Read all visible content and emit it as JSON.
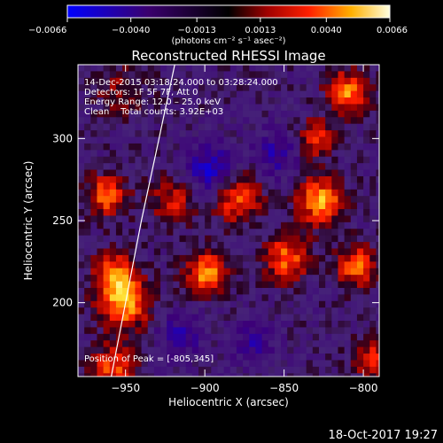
{
  "colorbar": {
    "ticks": [
      "-0.0066",
      "-0.0040",
      "-0.0013",
      "0.0013",
      "0.0040",
      "0.0066"
    ],
    "min": -0.0066,
    "max": 0.0066,
    "units": "(photons cm⁻² s⁻¹ asec⁻²)"
  },
  "chart_data": {
    "type": "heatmap",
    "title": "Reconstructed RHESSI Image",
    "xlabel": "Heliocentric X (arcsec)",
    "ylabel": "Heliocentric Y (arcsec)",
    "xlim": [
      -980,
      -790
    ],
    "ylim": [
      155,
      345
    ],
    "xticks": [
      -950,
      -900,
      -850,
      -800
    ],
    "yticks": [
      200,
      250,
      300
    ],
    "info_lines": [
      "14-Dec-2015 03:18:24.000 to 03:28:24.000",
      "Detectors: 1F 5F 7F, Att 0",
      "Energy Range: 12.0 – 25.0 keV",
      "Clean    Total counts: 3.92E+03"
    ],
    "peak_text": "Position of Peak = [-805,345]",
    "peak": [
      -805,
      345
    ],
    "sources": [
      {
        "x": -951,
        "y": 200,
        "amp": 0.0064,
        "sigma": 11
      },
      {
        "x": -958,
        "y": 218,
        "amp": 0.0046,
        "sigma": 9
      },
      {
        "x": -962,
        "y": 265,
        "amp": 0.005,
        "sigma": 9
      },
      {
        "x": -957,
        "y": 160,
        "amp": 0.0045,
        "sigma": 10
      },
      {
        "x": -920,
        "y": 262,
        "amp": 0.0034,
        "sigma": 10
      },
      {
        "x": -899,
        "y": 218,
        "amp": 0.0058,
        "sigma": 9
      },
      {
        "x": -880,
        "y": 265,
        "amp": 0.005,
        "sigma": 11
      },
      {
        "x": -848,
        "y": 227,
        "amp": 0.005,
        "sigma": 10
      },
      {
        "x": -827,
        "y": 262,
        "amp": 0.006,
        "sigma": 10
      },
      {
        "x": -804,
        "y": 222,
        "amp": 0.005,
        "sigma": 9
      },
      {
        "x": -810,
        "y": 328,
        "amp": 0.0056,
        "sigma": 9
      },
      {
        "x": -830,
        "y": 300,
        "amp": 0.0042,
        "sigma": 8
      },
      {
        "x": -795,
        "y": 165,
        "amp": 0.004,
        "sigma": 8
      },
      {
        "x": -953,
        "y": 330,
        "amp": 0.0022,
        "sigma": 12
      },
      {
        "x": -895,
        "y": 280,
        "amp": -0.0045,
        "sigma": 11
      },
      {
        "x": -855,
        "y": 290,
        "amp": -0.003,
        "sigma": 10
      },
      {
        "x": -915,
        "y": 180,
        "amp": -0.0028,
        "sigma": 10
      },
      {
        "x": -870,
        "y": 175,
        "amp": -0.0025,
        "sigma": 10
      }
    ],
    "limb": [
      [
        -959,
        155
      ],
      [
        -950,
        200
      ],
      [
        -940,
        250
      ],
      [
        -930,
        295
      ],
      [
        -919,
        345
      ]
    ]
  },
  "footer": {
    "date": "18-Oct-2017 19:27"
  }
}
